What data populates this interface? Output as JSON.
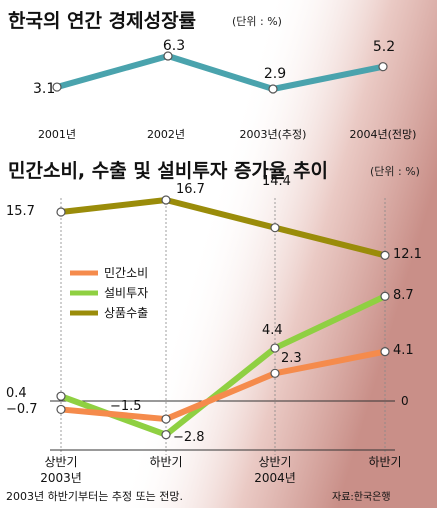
{
  "chart_data": [
    {
      "type": "line",
      "title": "한국의 연간 경제성장률",
      "unit_note": "(단위 : %)",
      "categories": [
        "2001년",
        "2002년",
        "2003년(추정)",
        "2004년(전망)"
      ],
      "values": [
        3.1,
        6.3,
        2.9,
        5.2
      ],
      "value_labels": [
        "3.1",
        "6.3",
        "2.9",
        "5.2"
      ],
      "color": "#4aa3ad",
      "grid": false,
      "legend": "none"
    },
    {
      "type": "line",
      "title": "민간소비, 수출 및 설비투자 증가율 추이",
      "unit_note": "(단위 : %)",
      "categories": [
        "상반기",
        "하반기",
        "상반기",
        "하반기"
      ],
      "year_labels": [
        "2003년",
        "2004년"
      ],
      "zero_label": "0",
      "ylim": [
        -4,
        18
      ],
      "series": [
        {
          "name": "상품수출",
          "color": "#9a8c0a",
          "values": [
            15.7,
            16.7,
            14.4,
            12.1
          ],
          "labels": [
            "15.7",
            "16.7",
            "14.4",
            "12.1"
          ]
        },
        {
          "name": "설비투자",
          "color": "#8fd042",
          "values": [
            0.4,
            -2.8,
            4.4,
            8.7
          ],
          "labels": [
            "0.4",
            "−2.8",
            "4.4",
            "8.7"
          ]
        },
        {
          "name": "민간소비",
          "color": "#f58b4c",
          "values": [
            -0.7,
            -1.5,
            2.3,
            4.1
          ],
          "labels": [
            "−0.7",
            "−1.5",
            "2.3",
            "4.1"
          ]
        }
      ],
      "legend_order": [
        "민간소비",
        "설비투자",
        "상품수출"
      ],
      "legend": "left-middle",
      "grid": false
    }
  ],
  "footer": {
    "note": "2003년 하반기부터는 추정 또는 전망.",
    "source": "자료:한국은행"
  }
}
